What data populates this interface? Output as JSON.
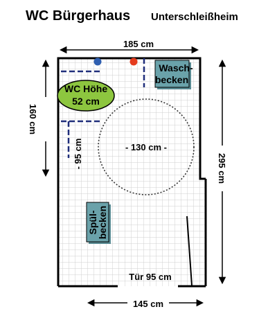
{
  "header": {
    "title": "WC Bürgerhaus",
    "subtitle": "Unterschleißheim"
  },
  "dimensions": {
    "top_width": "185 cm",
    "bottom_width": "145 cm",
    "left_height": "160 cm",
    "right_height": "295 cm",
    "inner_depth": "- 95 cm",
    "turning_circle": "- 130 cm -",
    "door": "Tür 95 cm"
  },
  "fixtures": {
    "toilet_line1": "WC Höhe",
    "toilet_line2": "52 cm",
    "sink_line1": "Wasch-",
    "sink_line2": "becken",
    "flush_line1": "Spül-",
    "flush_line2": "becken"
  },
  "colors": {
    "floor_tile": "#d4d4d4",
    "wall": "#000000",
    "toilet_fill": "#8dc63f",
    "fixture_fill": "#6aa2aa",
    "grab_bar": "#1f2d7a",
    "tap_blue": "#2f5fb0",
    "tap_red": "#e53c1e"
  }
}
